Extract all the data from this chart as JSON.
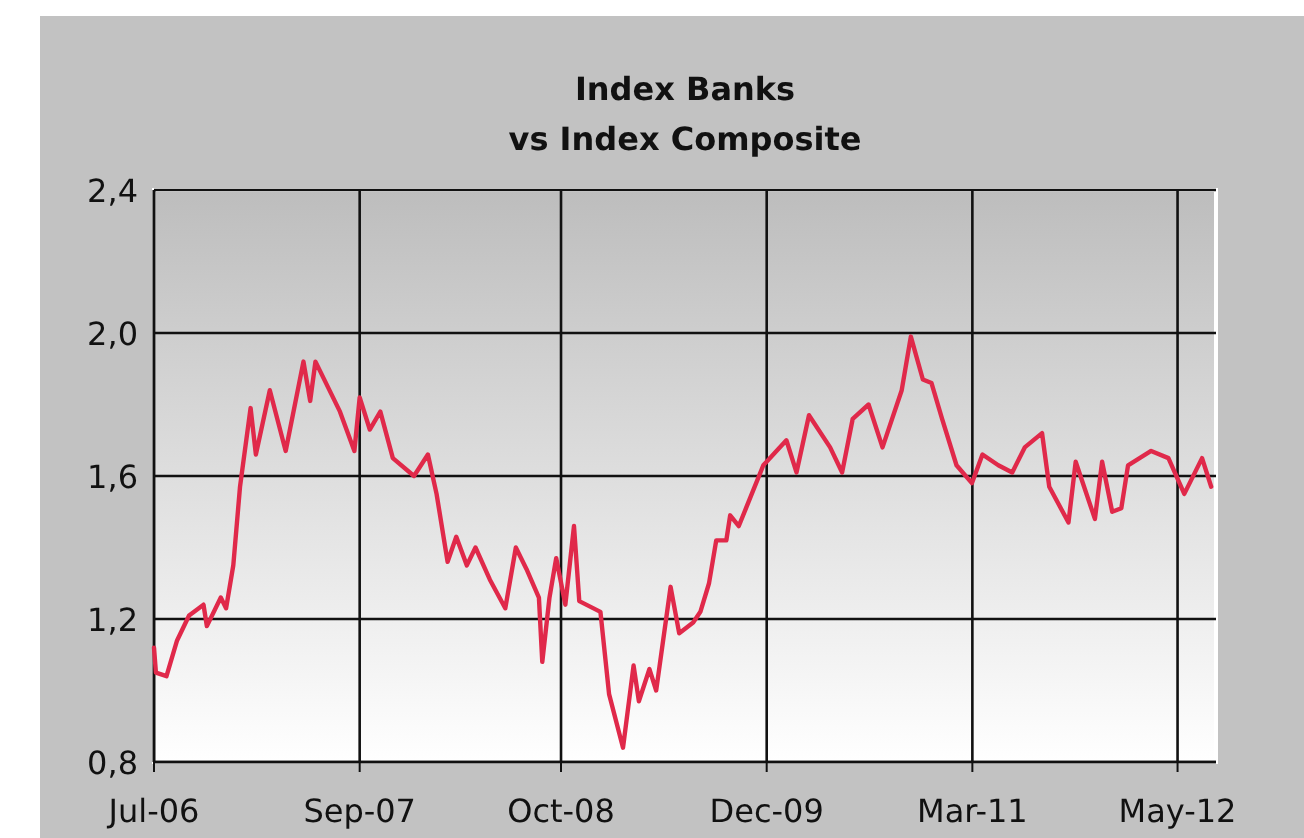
{
  "chart_data": {
    "type": "line",
    "title": "Index Banks\nvs Index Composite",
    "x": [
      "2006-07-02",
      "2006-07-06",
      "2006-07-28",
      "2006-08-19",
      "2006-09-13",
      "2006-10-13",
      "2006-10-20",
      "2006-11-18",
      "2006-11-29",
      "2006-12-14",
      "2006-12-28",
      "2007-01-19",
      "2007-01-30",
      "2007-02-28",
      "2007-04-02",
      "2007-05-09",
      "2007-05-23",
      "2007-06-03",
      "2007-07-24",
      "2007-08-23",
      "2007-09-03",
      "2007-09-24",
      "2007-10-16",
      "2007-11-11",
      "2007-12-25",
      "2008-01-23",
      "2008-02-10",
      "2008-03-04",
      "2008-03-22",
      "2008-04-13",
      "2008-05-01",
      "2008-05-31",
      "2008-07-02",
      "2008-07-24",
      "2008-08-15",
      "2008-09-10",
      "2008-09-17",
      "2008-10-02",
      "2008-10-16",
      "2008-11-04",
      "2008-11-22",
      "2008-12-03",
      "2009-01-16",
      "2009-02-03",
      "2009-03-04",
      "2009-03-26",
      "2009-04-06",
      "2009-04-28",
      "2009-05-12",
      "2009-06-11",
      "2009-06-29",
      "2009-07-28",
      "2009-08-12",
      "2009-08-30",
      "2009-09-14",
      "2009-10-05",
      "2009-10-13",
      "2009-10-31",
      "2009-11-15",
      "2009-12-21",
      "2010-02-07",
      "2010-02-28",
      "2010-03-26",
      "2010-05-09",
      "2010-06-03",
      "2010-06-25",
      "2010-07-28",
      "2010-08-26",
      "2010-10-05",
      "2010-10-24",
      "2010-11-18",
      "2010-12-06",
      "2010-12-28",
      "2011-01-27",
      "2011-02-28",
      "2011-03-22",
      "2011-04-24",
      "2011-05-23",
      "2011-06-18",
      "2011-07-24",
      "2011-08-08",
      "2011-09-17",
      "2011-10-02",
      "2011-11-11",
      "2011-11-26",
      "2011-12-17",
      "2012-01-05",
      "2012-01-19",
      "2012-03-07",
      "2012-04-12",
      "2012-05-15",
      "2012-06-21",
      "2012-07-10"
    ],
    "series": [
      {
        "color": "#e0294a",
        "values": [
          1.12,
          1.05,
          1.04,
          1.14,
          1.21,
          1.24,
          1.18,
          1.26,
          1.23,
          1.35,
          1.57,
          1.79,
          1.66,
          1.84,
          1.67,
          1.92,
          1.81,
          1.92,
          1.78,
          1.67,
          1.82,
          1.73,
          1.78,
          1.65,
          1.6,
          1.66,
          1.55,
          1.36,
          1.43,
          1.35,
          1.4,
          1.31,
          1.23,
          1.4,
          1.34,
          1.26,
          1.08,
          1.26,
          1.37,
          1.24,
          1.46,
          1.25,
          1.22,
          0.99,
          0.84,
          1.07,
          0.97,
          1.06,
          1.0,
          1.29,
          1.16,
          1.19,
          1.22,
          1.3,
          1.42,
          1.42,
          1.49,
          1.46,
          1.51,
          1.63,
          1.7,
          1.61,
          1.77,
          1.68,
          1.61,
          1.76,
          1.8,
          1.68,
          1.84,
          1.99,
          1.87,
          1.86,
          1.76,
          1.63,
          1.58,
          1.66,
          1.63,
          1.61,
          1.68,
          1.72,
          1.57,
          1.47,
          1.64,
          1.48,
          1.64,
          1.5,
          1.51,
          1.63,
          1.67,
          1.65,
          1.55,
          1.65,
          1.57
        ]
      }
    ],
    "xlim": [
      "2006-07-02",
      "2012-07-20"
    ],
    "xticks": [
      {
        "value": "2006-07-02",
        "label": "Jul-06"
      },
      {
        "value": "2007-09-03",
        "label": "Sep-07"
      },
      {
        "value": "2008-10-26",
        "label": "Oct-08"
      },
      {
        "value": "2009-12-28",
        "label": "Dec-09"
      },
      {
        "value": "2011-03-01",
        "label": "Mar-11"
      },
      {
        "value": "2012-05-01",
        "label": "May-12"
      }
    ],
    "ylim": [
      0.8,
      2.4
    ],
    "yticks": [
      {
        "value": 0.8,
        "label": "0,8"
      },
      {
        "value": 1.2,
        "label": "1,2"
      },
      {
        "value": 1.6,
        "label": "1,6"
      },
      {
        "value": 2.0,
        "label": "2,0"
      },
      {
        "value": 2.4,
        "label": "2,4"
      }
    ],
    "grid": true,
    "marker": "none",
    "line_style": "solid"
  }
}
